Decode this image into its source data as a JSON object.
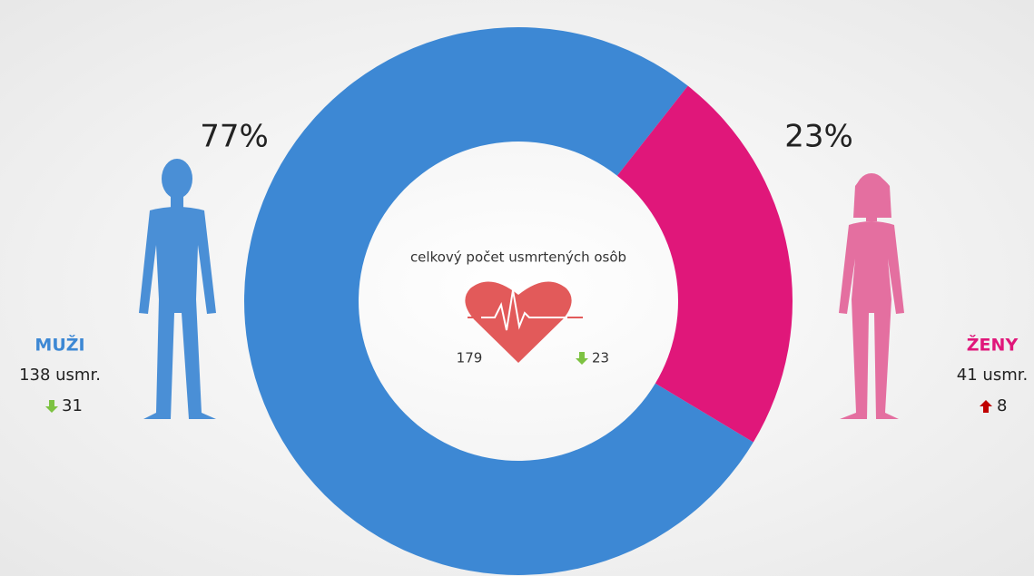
{
  "chart_data": {
    "type": "donut",
    "categories": [
      "MUŽI",
      "ŽENY"
    ],
    "values": [
      77,
      23
    ],
    "value_labels": [
      "77%",
      "23%"
    ],
    "colors": [
      "#3d88d4",
      "#e0177a"
    ]
  },
  "total": {
    "label": "celkový počet usmrtených osôb",
    "value": 179,
    "change": 23,
    "trend": "down"
  },
  "groups": [
    {
      "count": "138 usmr.",
      "change": 31,
      "trend": "down"
    },
    {
      "count": "41 usmr.",
      "change": 8,
      "trend": "up"
    }
  ]
}
